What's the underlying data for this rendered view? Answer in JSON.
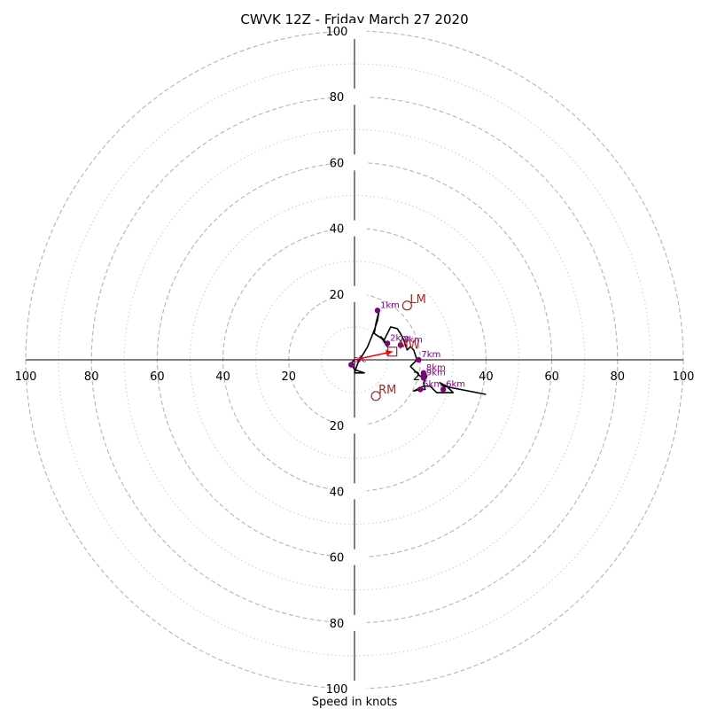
{
  "chart_data": {
    "type": "hodograph",
    "title": "CWVK 12Z - Friday March 27 2020",
    "xlabel": "Speed in knots",
    "speed_max": 100,
    "major_rings": [
      20,
      40,
      60,
      80,
      100
    ],
    "minor_rings": [
      10,
      30,
      50,
      70,
      90
    ],
    "tick_labels": [
      "100",
      "80",
      "60",
      "40",
      "20"
    ],
    "grid": true,
    "colors": {
      "trace": "#000000",
      "height_points": "#800080",
      "storm_motion": "#b22222",
      "shear_arrow": "#ff0000",
      "major_ring": "#b4b4b4",
      "minor_ring": "#cccccc"
    },
    "trace": [
      [
        0,
        0
      ],
      [
        -1,
        -1
      ],
      [
        0,
        -3
      ],
      [
        3,
        -4
      ],
      [
        0,
        -4
      ],
      [
        1,
        -1
      ],
      [
        4,
        4
      ],
      [
        6,
        9
      ],
      [
        7,
        12
      ],
      [
        7.5,
        15
      ],
      [
        6.5,
        11
      ],
      [
        6,
        8
      ],
      [
        9,
        6
      ],
      [
        8,
        7
      ],
      [
        10,
        4
      ],
      [
        9,
        6
      ],
      [
        11,
        10
      ],
      [
        13,
        9.5
      ],
      [
        14,
        8
      ],
      [
        15,
        6
      ],
      [
        16,
        3
      ],
      [
        17,
        4
      ],
      [
        18,
        3
      ],
      [
        19,
        0
      ],
      [
        17,
        -2
      ],
      [
        19,
        -4
      ],
      [
        20,
        -5
      ],
      [
        22,
        -5
      ],
      [
        21,
        -7
      ],
      [
        21.5,
        -9
      ],
      [
        20,
        -9
      ],
      [
        18,
        -9.5
      ],
      [
        21,
        -8
      ],
      [
        23,
        -8
      ],
      [
        25,
        -10
      ],
      [
        28,
        -10
      ],
      [
        30,
        -10
      ],
      [
        28,
        -8
      ],
      [
        26,
        -7
      ],
      [
        27,
        -8
      ],
      [
        40,
        -10.5
      ]
    ],
    "height_points": [
      {
        "label": "sfc",
        "u": -1,
        "v": -1.5
      },
      {
        "label": "1km",
        "u": 7,
        "v": 15
      },
      {
        "label": "2km",
        "u": 10,
        "v": 5
      },
      {
        "label": "3km",
        "u": 14,
        "v": 4.5
      },
      {
        "label": "7km",
        "u": 19.5,
        "v": 0
      },
      {
        "label": "8km",
        "u": 21,
        "v": -4
      },
      {
        "label": "9km",
        "u": 21,
        "v": -5.5
      },
      {
        "label": "5km",
        "u": 20,
        "v": -9
      },
      {
        "label": "6km",
        "u": 27,
        "v": -9
      }
    ],
    "storm_motions": [
      {
        "label": "LM",
        "u": 16,
        "v": 16.5
      },
      {
        "label": "RM",
        "u": 6.5,
        "v": -11
      },
      {
        "label": "MW",
        "u": 11.5,
        "v": 2.5
      }
    ],
    "shear_vector": {
      "from": [
        0,
        0
      ],
      "to": [
        11.5,
        2.5
      ]
    }
  }
}
